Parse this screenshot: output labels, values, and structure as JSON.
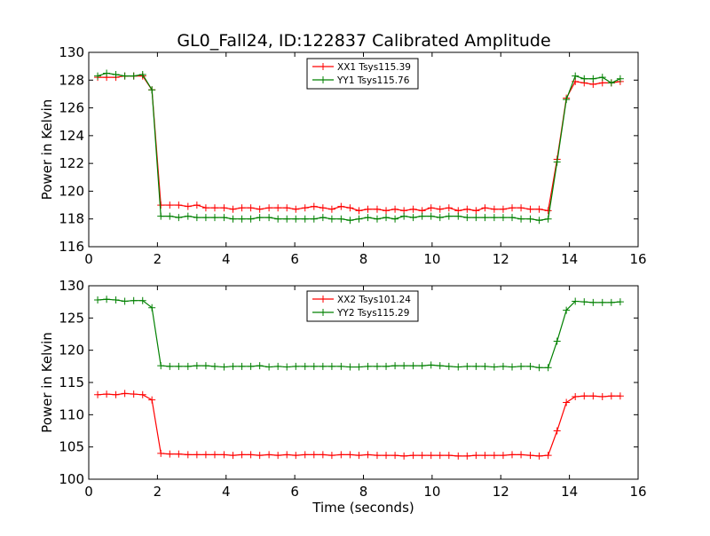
{
  "figure": {
    "title": "GL0_Fall24, ID:122837 Calibrated Amplitude",
    "colors": {
      "red": "#ff0000",
      "green": "#008000"
    }
  },
  "chart_data": [
    {
      "type": "line",
      "title": "GL0_Fall24, ID:122837 Calibrated Amplitude",
      "xlabel": "",
      "ylabel": "Power in Kelvin",
      "xlim": [
        0,
        16
      ],
      "ylim": [
        116,
        130
      ],
      "xticks": [
        0,
        2,
        4,
        6,
        8,
        10,
        12,
        14,
        16
      ],
      "yticks": [
        116,
        118,
        120,
        122,
        124,
        126,
        128,
        130
      ],
      "grid": false,
      "legend": "top-center",
      "x": [
        0.26,
        0.52,
        0.79,
        1.05,
        1.31,
        1.57,
        1.84,
        2.1,
        2.36,
        2.62,
        2.89,
        3.15,
        3.41,
        3.67,
        3.94,
        4.2,
        4.46,
        4.72,
        4.98,
        5.25,
        5.51,
        5.77,
        6.03,
        6.3,
        6.56,
        6.82,
        7.08,
        7.35,
        7.61,
        7.87,
        8.13,
        8.4,
        8.66,
        8.92,
        9.18,
        9.45,
        9.71,
        9.97,
        10.23,
        10.49,
        10.76,
        11.02,
        11.28,
        11.54,
        11.81,
        12.07,
        12.33,
        12.59,
        12.86,
        13.12,
        13.38,
        13.64,
        13.91,
        14.17,
        14.43,
        14.69,
        14.96,
        15.22,
        15.48
      ],
      "series": [
        {
          "name": "XX1 Tsys115.39",
          "color": "#ff0000",
          "values": [
            128.2,
            128.2,
            128.2,
            128.3,
            128.3,
            128.3,
            127.3,
            119.0,
            119.0,
            119.0,
            118.9,
            119.0,
            118.8,
            118.8,
            118.8,
            118.7,
            118.8,
            118.8,
            118.7,
            118.8,
            118.8,
            118.8,
            118.7,
            118.8,
            118.9,
            118.8,
            118.7,
            118.9,
            118.8,
            118.6,
            118.7,
            118.7,
            118.6,
            118.7,
            118.6,
            118.7,
            118.6,
            118.8,
            118.7,
            118.8,
            118.6,
            118.7,
            118.6,
            118.8,
            118.7,
            118.7,
            118.8,
            118.8,
            118.7,
            118.7,
            118.6,
            122.3,
            126.7,
            127.9,
            127.8,
            127.7,
            127.8,
            127.8,
            127.9
          ]
        },
        {
          "name": "YY1 Tsys115.76",
          "color": "#008000",
          "values": [
            128.3,
            128.5,
            128.4,
            128.3,
            128.3,
            128.4,
            127.3,
            118.2,
            118.2,
            118.1,
            118.2,
            118.1,
            118.1,
            118.1,
            118.1,
            118.0,
            118.0,
            118.0,
            118.1,
            118.1,
            118.0,
            118.0,
            118.0,
            118.0,
            118.0,
            118.1,
            118.0,
            118.0,
            117.9,
            118.0,
            118.1,
            118.0,
            118.1,
            118.0,
            118.2,
            118.1,
            118.2,
            118.2,
            118.1,
            118.2,
            118.2,
            118.1,
            118.1,
            118.1,
            118.1,
            118.1,
            118.1,
            118.0,
            118.0,
            117.9,
            118.0,
            122.1,
            126.6,
            128.3,
            128.1,
            128.1,
            128.2,
            127.8,
            128.1
          ]
        }
      ]
    },
    {
      "type": "line",
      "title": "",
      "xlabel": "Time (seconds)",
      "ylabel": "Power in Kelvin",
      "xlim": [
        0,
        16
      ],
      "ylim": [
        100,
        130
      ],
      "xticks": [
        0,
        2,
        4,
        6,
        8,
        10,
        12,
        14,
        16
      ],
      "yticks": [
        100,
        105,
        110,
        115,
        120,
        125,
        130
      ],
      "grid": false,
      "legend": "top-center",
      "x": [
        0.26,
        0.52,
        0.79,
        1.05,
        1.31,
        1.57,
        1.84,
        2.1,
        2.36,
        2.62,
        2.89,
        3.15,
        3.41,
        3.67,
        3.94,
        4.2,
        4.46,
        4.72,
        4.98,
        5.25,
        5.51,
        5.77,
        6.03,
        6.3,
        6.56,
        6.82,
        7.08,
        7.35,
        7.61,
        7.87,
        8.13,
        8.4,
        8.66,
        8.92,
        9.18,
        9.45,
        9.71,
        9.97,
        10.23,
        10.49,
        10.76,
        11.02,
        11.28,
        11.54,
        11.81,
        12.07,
        12.33,
        12.59,
        12.86,
        13.12,
        13.38,
        13.64,
        13.91,
        14.17,
        14.43,
        14.69,
        14.96,
        15.22,
        15.48
      ],
      "series": [
        {
          "name": "XX2 Tsys101.24",
          "color": "#ff0000",
          "values": [
            113.1,
            113.2,
            113.1,
            113.3,
            113.2,
            113.1,
            112.3,
            104.0,
            103.9,
            103.9,
            103.8,
            103.8,
            103.8,
            103.8,
            103.8,
            103.7,
            103.8,
            103.8,
            103.7,
            103.8,
            103.7,
            103.8,
            103.7,
            103.8,
            103.8,
            103.8,
            103.7,
            103.8,
            103.8,
            103.7,
            103.8,
            103.7,
            103.7,
            103.7,
            103.6,
            103.7,
            103.7,
            103.7,
            103.7,
            103.7,
            103.6,
            103.6,
            103.7,
            103.7,
            103.7,
            103.7,
            103.8,
            103.8,
            103.7,
            103.6,
            103.7,
            107.5,
            111.9,
            112.8,
            112.9,
            112.9,
            112.8,
            112.9,
            112.9
          ]
        },
        {
          "name": "YY2 Tsys115.29",
          "color": "#008000",
          "values": [
            127.8,
            127.9,
            127.8,
            127.6,
            127.7,
            127.7,
            126.6,
            117.6,
            117.5,
            117.5,
            117.5,
            117.6,
            117.6,
            117.5,
            117.4,
            117.5,
            117.5,
            117.5,
            117.6,
            117.4,
            117.5,
            117.4,
            117.5,
            117.5,
            117.5,
            117.5,
            117.5,
            117.5,
            117.4,
            117.4,
            117.5,
            117.5,
            117.5,
            117.6,
            117.6,
            117.6,
            117.6,
            117.7,
            117.6,
            117.5,
            117.4,
            117.5,
            117.5,
            117.5,
            117.4,
            117.5,
            117.4,
            117.5,
            117.5,
            117.3,
            117.3,
            121.4,
            126.2,
            127.6,
            127.5,
            127.4,
            127.4,
            127.4,
            127.5
          ]
        }
      ]
    }
  ]
}
